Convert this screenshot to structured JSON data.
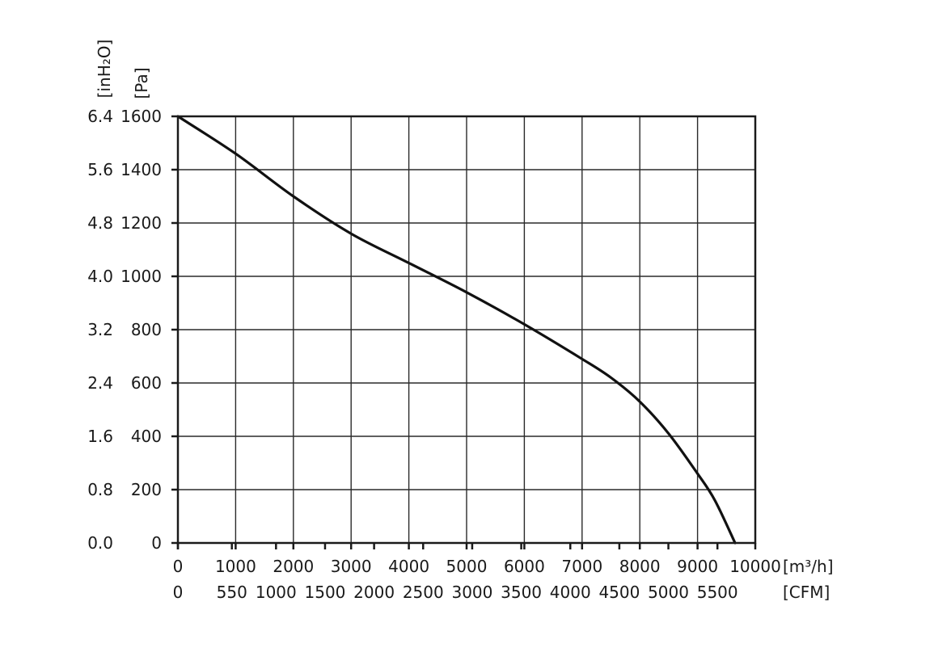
{
  "chart_data": {
    "type": "line",
    "title": "",
    "x_primary": {
      "unit_label": "[m³/h]",
      "range": [
        0,
        10000
      ],
      "ticks": [
        "0",
        "1000",
        "2000",
        "3000",
        "4000",
        "5000",
        "6000",
        "7000",
        "8000",
        "9000",
        "10000"
      ]
    },
    "x_secondary": {
      "unit_label": "[CFM]",
      "ticks": [
        {
          "value": 0,
          "label": "0"
        },
        {
          "value": 550,
          "label": "550"
        },
        {
          "value": 1000,
          "label": "1000"
        },
        {
          "value": 1500,
          "label": "1500"
        },
        {
          "value": 2000,
          "label": "2000"
        },
        {
          "value": 2500,
          "label": "2500"
        },
        {
          "value": 3000,
          "label": "3000"
        },
        {
          "value": 3500,
          "label": "3500"
        },
        {
          "value": 4000,
          "label": "4000"
        },
        {
          "value": 4500,
          "label": "4500"
        },
        {
          "value": 5000,
          "label": "5000"
        },
        {
          "value": 5500,
          "label": "5500"
        }
      ]
    },
    "y_primary": {
      "unit_label": "[Pa]",
      "range": [
        0,
        1600
      ],
      "ticks": [
        "0",
        "200",
        "400",
        "600",
        "800",
        "1000",
        "1200",
        "1400",
        "1600"
      ]
    },
    "y_secondary": {
      "unit_label": "[inH₂O]",
      "ticks": [
        "0.0",
        "0.8",
        "1.6",
        "2.4",
        "3.2",
        "4.0",
        "4.8",
        "5.6",
        "6.4"
      ]
    },
    "grid": true,
    "series": [
      {
        "x": [
          0,
          1000,
          2000,
          3000,
          4000,
          5000,
          6000,
          7000,
          7500,
          8000,
          8500,
          9000,
          9300,
          9650
        ],
        "y": [
          1600,
          1460,
          1300,
          1160,
          1050,
          940,
          820,
          690,
          620,
          530,
          410,
          260,
          160,
          0
        ]
      }
    ]
  }
}
